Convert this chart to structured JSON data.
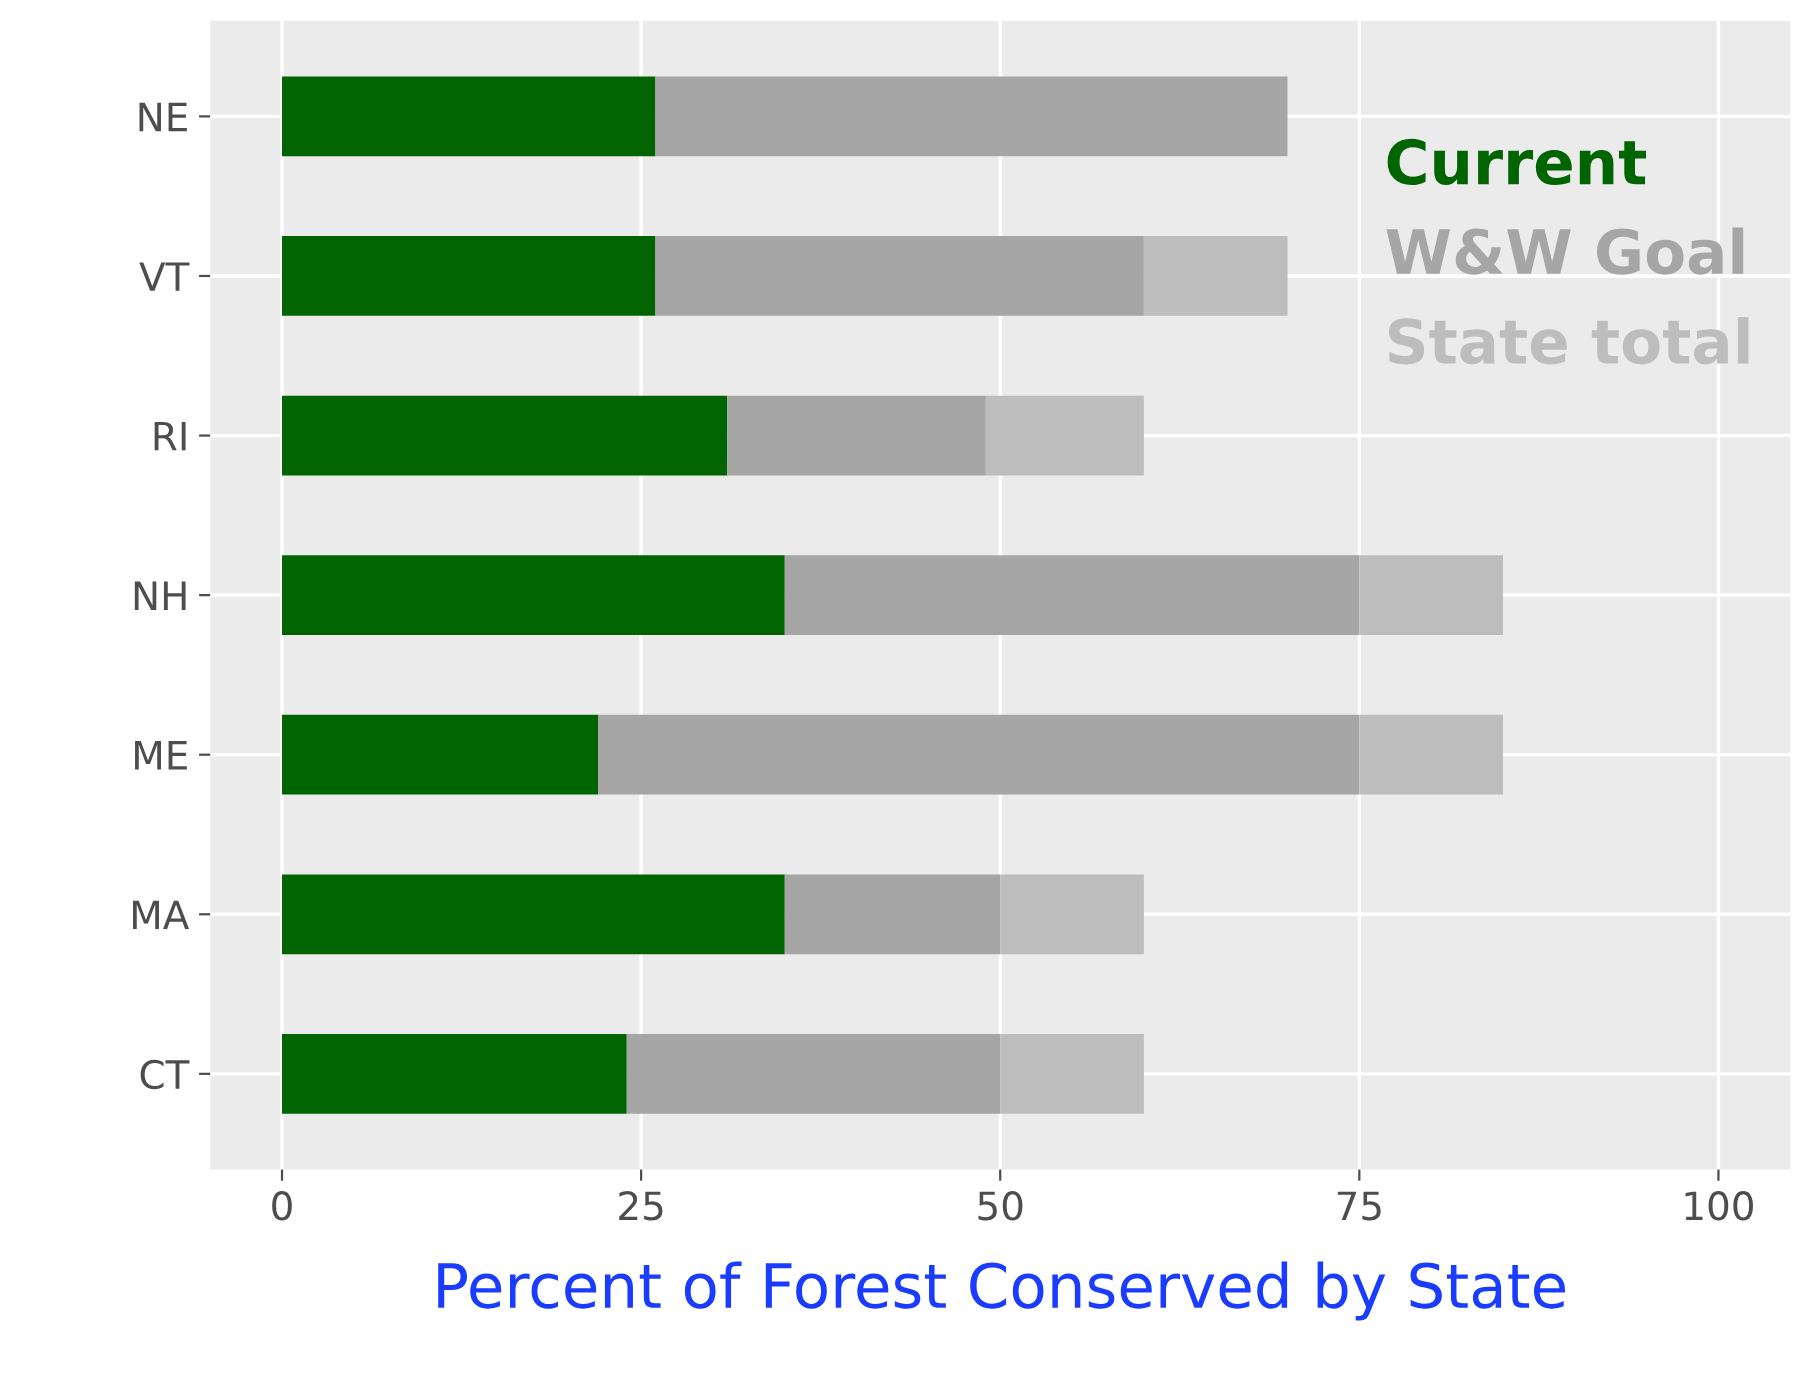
{
  "chart_data": {
    "type": "bar",
    "orientation": "horizontal",
    "stacked": true,
    "categories": [
      "NE",
      "VT",
      "RI",
      "NH",
      "ME",
      "MA",
      "CT"
    ],
    "series": [
      {
        "name": "Current",
        "color": "#006400",
        "values": [
          26,
          26,
          31,
          35,
          22,
          35,
          24
        ]
      },
      {
        "name": "W&W Goal",
        "color": "#a6a6a6",
        "values": [
          44,
          34,
          18,
          40,
          53,
          15,
          26
        ]
      },
      {
        "name": "State total",
        "color": "#bdbdbd",
        "values": [
          0,
          10,
          11,
          10,
          10,
          10,
          10
        ]
      }
    ],
    "xlabel": "Percent of Forest Conserved by State",
    "xlim": [
      -5,
      105
    ],
    "xticks": [
      0,
      25,
      50,
      75,
      100
    ],
    "grid": true,
    "legend": "top right"
  }
}
